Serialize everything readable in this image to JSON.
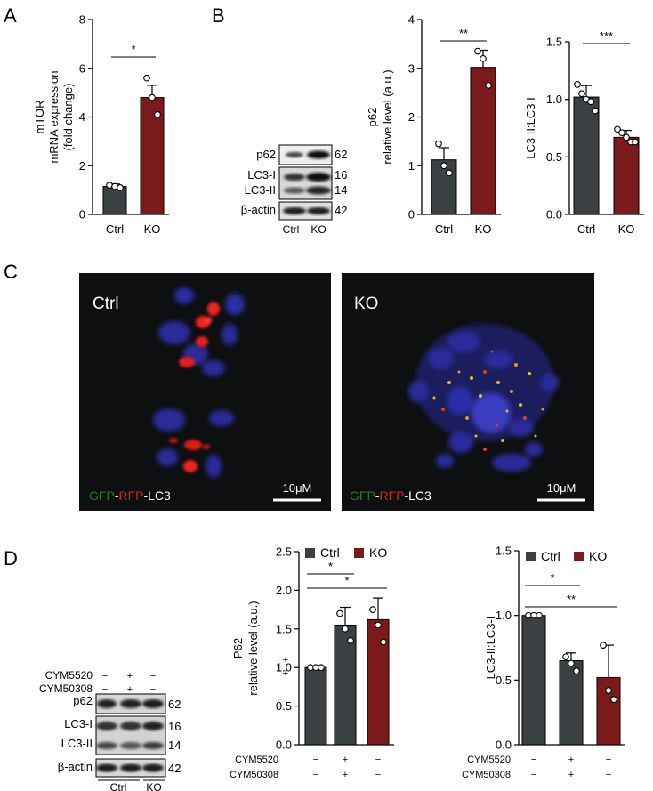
{
  "panel_letters": [
    "A",
    "B",
    "C",
    "D"
  ],
  "colors": {
    "ctrl": "#3b4142",
    "ko": "#7a1a1a",
    "axis": "#000000",
    "micro_bg": "#0d0f10",
    "nucleus": "#2a2c9a",
    "rfp": "#e8201f",
    "gfp": "#2a7a2a",
    "yellow": "#d8b020"
  },
  "chart_data": [
    {
      "id": "A",
      "type": "bar",
      "categories": [
        "Ctrl",
        "KO"
      ],
      "values": [
        1.15,
        4.8
      ],
      "errors": [
        0.1,
        0.5
      ],
      "points": [
        [
          1.2,
          1.15,
          1.1
        ],
        [
          5.6,
          4.8,
          4.1
        ]
      ],
      "ylabel": [
        "mTOR",
        "mRNA expression",
        "(fold change)"
      ],
      "ylim": [
        0,
        8
      ],
      "yticks": [
        0,
        2,
        4,
        6,
        8
      ],
      "significance": [
        {
          "from": 0,
          "to": 1,
          "label": "*"
        }
      ]
    },
    {
      "id": "B-p62",
      "type": "bar",
      "categories": [
        "Ctrl",
        "KO"
      ],
      "values": [
        1.12,
        3.02
      ],
      "errors": [
        0.25,
        0.35
      ],
      "points": [
        [
          1.45,
          1.0,
          0.85
        ],
        [
          3.35,
          3.2,
          2.65
        ]
      ],
      "ylabel": [
        "p62",
        "relative level (a.u.)"
      ],
      "ylim": [
        0,
        4
      ],
      "yticks": [
        0,
        1,
        2,
        3,
        4
      ],
      "significance": [
        {
          "from": 0,
          "to": 1,
          "label": "**"
        }
      ]
    },
    {
      "id": "B-lc3",
      "type": "bar",
      "categories": [
        "Ctrl",
        "KO"
      ],
      "values": [
        1.02,
        0.67
      ],
      "errors": [
        0.1,
        0.06
      ],
      "points": [
        [
          1.13,
          1.05,
          1.0,
          0.98,
          0.9
        ],
        [
          0.74,
          0.71,
          0.67,
          0.63,
          0.63
        ]
      ],
      "ylabel": [
        "LC3 II:LC3 I"
      ],
      "ylim": [
        0,
        1.5
      ],
      "yticks": [
        "0.0",
        "0.5",
        "1.0",
        "1.5"
      ],
      "significance": [
        {
          "from": 0,
          "to": 1,
          "label": "***"
        }
      ]
    },
    {
      "id": "D-p62",
      "type": "bar",
      "categories": [
        "1",
        "2",
        "3"
      ],
      "values": [
        1.0,
        1.55,
        1.62
      ],
      "errors": [
        0.0,
        0.23,
        0.28
      ],
      "points": [
        [
          1.0,
          1.0,
          1.0
        ],
        [
          1.7,
          1.5,
          1.35
        ],
        [
          1.75,
          1.55,
          1.33
        ]
      ],
      "colors": [
        "ctrl",
        "ctrl",
        "ko"
      ],
      "ylabel": [
        "P62",
        "relative level (a.u.)"
      ],
      "ylim": [
        0,
        2.5
      ],
      "yticks": [
        "0.0",
        "0.5",
        "1.0",
        "1.5",
        "2.0",
        "2.5"
      ],
      "legend": [
        "Ctrl",
        "KO"
      ],
      "significance": [
        {
          "from": 0,
          "to": 1,
          "label": "*"
        },
        {
          "from": 0,
          "to": 2,
          "label": "*"
        }
      ],
      "conditions": [
        {
          "label": "CYM5520",
          "marks": [
            "−",
            "+",
            "−"
          ]
        },
        {
          "label": "CYM50308",
          "marks": [
            "−",
            "+",
            "−"
          ]
        }
      ],
      "side_marks": [
        "+",
        "+"
      ]
    },
    {
      "id": "D-lc3",
      "type": "bar",
      "categories": [
        "1",
        "2",
        "3"
      ],
      "values": [
        1.0,
        0.65,
        0.52
      ],
      "errors": [
        0.0,
        0.06,
        0.25
      ],
      "points": [
        [
          1.0,
          1.0,
          1.0
        ],
        [
          0.68,
          0.63,
          0.57
        ],
        [
          0.77,
          0.42,
          0.35
        ]
      ],
      "colors": [
        "ctrl",
        "ctrl",
        "ko"
      ],
      "ylabel": [
        "LC3-II:LC3-I"
      ],
      "ylim": [
        0,
        1.5
      ],
      "yticks": [
        "0.0",
        "0.5",
        "1.0",
        "1.5"
      ],
      "legend": [
        "Ctrl",
        "KO"
      ],
      "significance": [
        {
          "from": 0,
          "to": 1,
          "label": "*"
        },
        {
          "from": 0,
          "to": 2,
          "label": "**"
        }
      ],
      "conditions": [
        {
          "label": "CYM5520",
          "marks": [
            "−",
            "+",
            "−"
          ]
        },
        {
          "label": "CYM50308",
          "marks": [
            "−",
            "+",
            "−"
          ]
        }
      ]
    }
  ],
  "blot_b": {
    "labels": [
      "p62",
      "LC3-I",
      "LC3-II",
      "β-actin"
    ],
    "kda": [
      "62",
      "16",
      "14",
      "42"
    ],
    "lanes": [
      "Ctrl",
      "KO"
    ]
  },
  "micro": [
    {
      "title": "Ctrl",
      "caption_gfp": "GFP",
      "caption_rfp": "RFP",
      "caption_lc3": "LC3",
      "scale": "10μM"
    },
    {
      "title": "KO",
      "caption_gfp": "GFP",
      "caption_rfp": "RFP",
      "caption_lc3": "LC3",
      "scale": "10μM"
    }
  ],
  "blot_d": {
    "treat_labels": [
      "CYM5520",
      "CYM50308"
    ],
    "treat_marks": [
      [
        "−",
        "+",
        "−"
      ],
      [
        "−",
        "+",
        "−"
      ]
    ],
    "labels": [
      "p62",
      "LC3-I",
      "LC3-II",
      "β-actin"
    ],
    "kda": [
      "62",
      "16",
      "14",
      "42"
    ],
    "groups": [
      "Ctrl",
      "KO"
    ]
  }
}
